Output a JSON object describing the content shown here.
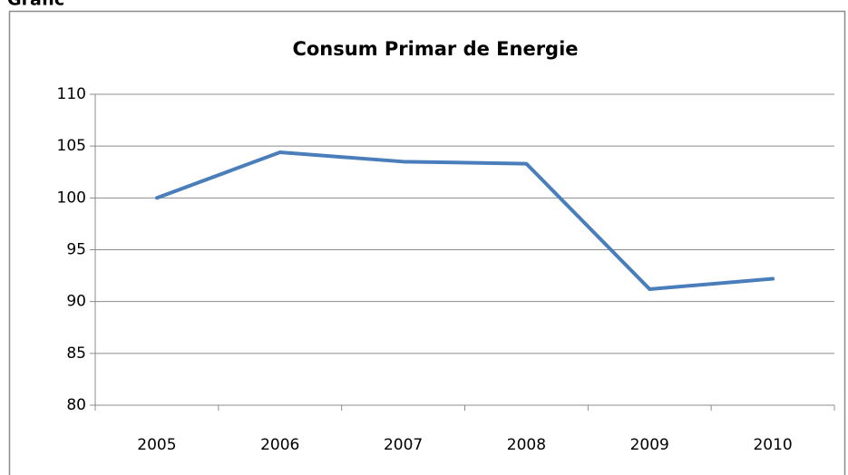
{
  "heading": "Grafic",
  "chart_data": {
    "type": "line",
    "title": "Consum Primar de Energie",
    "categories": [
      "2005",
      "2006",
      "2007",
      "2008",
      "2009",
      "2010"
    ],
    "series": [
      {
        "name": "Consum Primar de Energie",
        "color": "#4a7ebb",
        "values": [
          100.0,
          104.4,
          103.5,
          103.3,
          91.2,
          92.2
        ]
      }
    ],
    "ylim": [
      80,
      110
    ],
    "yticks": [
      80,
      85,
      90,
      95,
      100,
      105,
      110
    ],
    "grid": true,
    "legend": false
  }
}
